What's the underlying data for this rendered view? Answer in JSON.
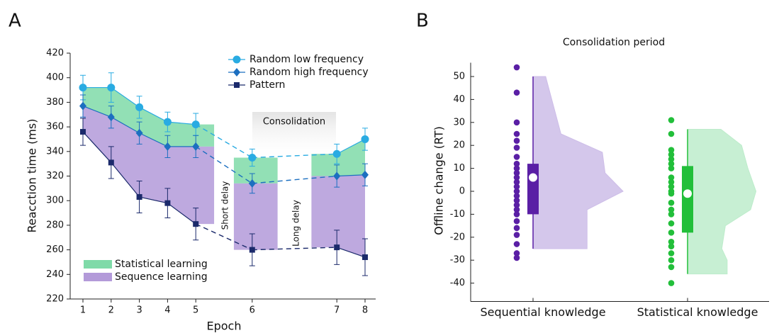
{
  "chart_data": [
    {
      "type": "line",
      "panel_label": "A",
      "xlabel": "Epoch",
      "ylabel": "Reacction time (ms)",
      "categories": [
        "1",
        "2",
        "3",
        "4",
        "5",
        "6",
        "7",
        "8"
      ],
      "ylim": [
        220,
        420
      ],
      "yticks": [
        220,
        240,
        260,
        280,
        300,
        320,
        340,
        360,
        380,
        400,
        420
      ],
      "series": [
        {
          "name": "Random low frequency",
          "color": "#29abe2",
          "marker": "circle",
          "values": [
            392,
            392,
            376,
            364,
            362,
            335,
            338,
            350
          ],
          "errors": [
            10,
            12,
            9,
            8,
            9,
            7,
            8,
            9
          ]
        },
        {
          "name": "Random high frequency",
          "color": "#1c6fc0",
          "marker": "diamond",
          "values": [
            377,
            368,
            355,
            344,
            344,
            314,
            320,
            321
          ],
          "errors": [
            9,
            9,
            9,
            9,
            9,
            8,
            9,
            9
          ]
        },
        {
          "name": "Pattern",
          "color": "#1b2a6b",
          "marker": "square",
          "values": [
            356,
            331,
            303,
            298,
            281,
            260,
            262,
            254
          ],
          "errors": [
            11,
            13,
            13,
            12,
            13,
            13,
            14,
            15
          ]
        }
      ],
      "areas": [
        {
          "name": "Statistical learning",
          "color": "#7fdaa8",
          "between": [
            0,
            1
          ]
        },
        {
          "name": "Sequence learning",
          "color": "#b39ad9",
          "between": [
            1,
            2
          ]
        }
      ],
      "annotations": [
        "Consolidation",
        "Short delay",
        "Long delay"
      ]
    },
    {
      "type": "raincloud",
      "panel_label": "B",
      "title": "Consolidation period",
      "ylabel": "Offline change (RT)",
      "categories": [
        "Sequential knowledge",
        "Statistical knowledge"
      ],
      "ylim": [
        -48,
        56
      ],
      "yticks": [
        -40,
        -30,
        -20,
        -10,
        0,
        10,
        20,
        30,
        40,
        50
      ],
      "series": [
        {
          "color": "#5a1fa5",
          "cloud_color": "#cdbde8",
          "points": [
            54,
            43,
            30,
            25,
            22,
            19,
            15,
            12,
            10,
            8,
            6,
            4,
            2,
            0,
            -2,
            -4,
            -6,
            -8,
            -10,
            -13,
            -16,
            -19,
            -23,
            -27,
            -29
          ],
          "q1": -10,
          "q3": 12,
          "mean": 6,
          "whisker_low": -25,
          "whisker_high": 50,
          "density": {
            "y": [
              50,
              25,
              17,
              8,
              0,
              -8,
              -20,
              -25
            ],
            "width": [
              0.14,
              0.31,
              0.77,
              0.8,
              1.0,
              0.6,
              0.6,
              0.6
            ]
          }
        },
        {
          "color": "#22bf3a",
          "cloud_color": "#bdeccb",
          "points": [
            31,
            25,
            18,
            16,
            14,
            12,
            10,
            6,
            4,
            2,
            0,
            -1,
            -5,
            -8,
            -10,
            -14,
            -18,
            -22,
            -24,
            -27,
            -30,
            -33,
            -40
          ],
          "q1": -18,
          "q3": 11,
          "mean": -1,
          "whisker_low": -36,
          "whisker_high": 27,
          "density": {
            "y": [
              27,
              20,
              10,
              0,
              -8,
              -15,
              -25,
              -30,
              -36
            ],
            "width": [
              0.37,
              0.6,
              0.67,
              0.76,
              0.7,
              0.42,
              0.38,
              0.44,
              0.44
            ]
          }
        }
      ]
    }
  ]
}
